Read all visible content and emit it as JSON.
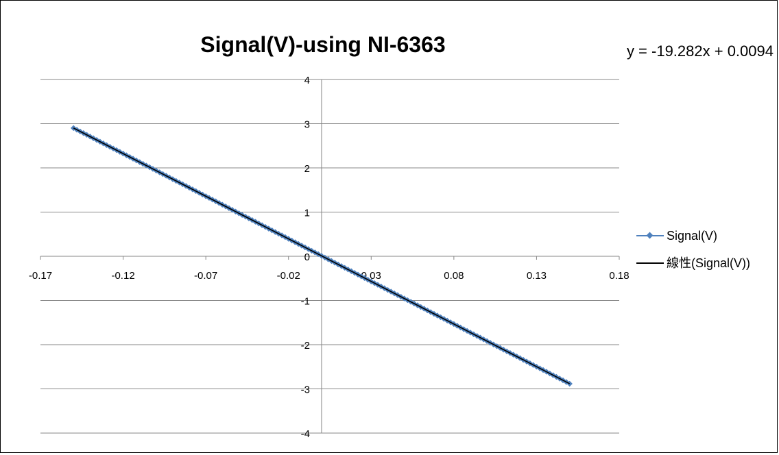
{
  "chart_data": {
    "type": "scatter",
    "title": "Signal(V)-using NI-6363",
    "xlabel": "",
    "ylabel": "",
    "xlim": [
      -0.17,
      0.18
    ],
    "ylim": [
      -4,
      4
    ],
    "x_ticks": [
      -0.17,
      -0.12,
      -0.07,
      -0.02,
      0.03,
      0.08,
      0.13,
      0.18
    ],
    "x_tick_labels": [
      "-0.17",
      "-0.12",
      "-0.07",
      "-0.02",
      "0.03",
      "0.08",
      "0.13",
      "0.18"
    ],
    "y_ticks": [
      -4,
      -3,
      -2,
      -1,
      0,
      1,
      2,
      3,
      4
    ],
    "y_tick_labels": [
      "-4",
      "-3",
      "-2",
      "-1",
      "0",
      "1",
      "2",
      "3",
      "4"
    ],
    "grid": {
      "horizontal": true,
      "vertical": false
    },
    "legend_position": "right",
    "series": [
      {
        "name": "Signal(V)",
        "kind": "markers-line",
        "color": "#4F81BD",
        "x_start": -0.15,
        "x_end": 0.15,
        "points": 151
      },
      {
        "name": "線性(Signal(V))",
        "kind": "trendline",
        "color": "#000000",
        "slope": -19.282,
        "intercept": 0.0094
      }
    ],
    "annotations": [
      {
        "text": "y = -19.282x + 0.0094"
      }
    ]
  }
}
